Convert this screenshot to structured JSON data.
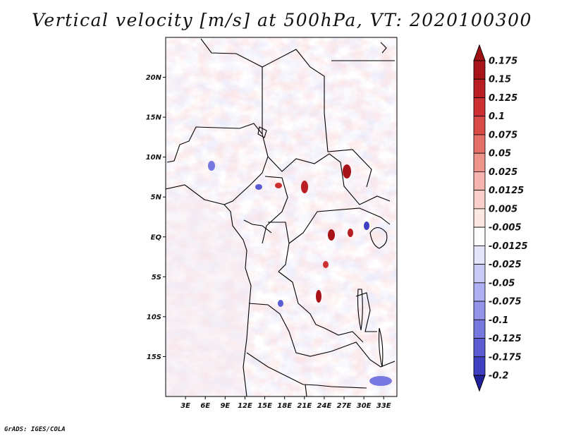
{
  "title": "Vertical velocity [m/s] at 500hPa, VT: 2020100300",
  "credit": "GrADS: IGES/COLA",
  "map": {
    "lon_range": [
      0,
      35
    ],
    "lat_range": [
      -20,
      25
    ],
    "lon_ticks": [
      {
        "value": 3,
        "label": "3E"
      },
      {
        "value": 6,
        "label": "6E"
      },
      {
        "value": 9,
        "label": "9E"
      },
      {
        "value": 12,
        "label": "12E"
      },
      {
        "value": 15,
        "label": "15E"
      },
      {
        "value": 18,
        "label": "18E"
      },
      {
        "value": 21,
        "label": "21E"
      },
      {
        "value": 24,
        "label": "24E"
      },
      {
        "value": 27,
        "label": "27E"
      },
      {
        "value": 30,
        "label": "30E"
      },
      {
        "value": 33,
        "label": "33E"
      }
    ],
    "lat_ticks": [
      {
        "value": 20,
        "label": "20N"
      },
      {
        "value": 15,
        "label": "15N"
      },
      {
        "value": 10,
        "label": "10N"
      },
      {
        "value": 5,
        "label": "5N"
      },
      {
        "value": 0,
        "label": "EQ"
      },
      {
        "value": -5,
        "label": "5S"
      },
      {
        "value": -10,
        "label": "10S"
      },
      {
        "value": -15,
        "label": "15S"
      }
    ]
  },
  "colorbar": {
    "levels": [
      {
        "label": "0.175",
        "color": "#a71319"
      },
      {
        "label": "0.15",
        "color": "#b91f22"
      },
      {
        "label": "0.125",
        "color": "#cc3032"
      },
      {
        "label": "0.1",
        "color": "#da4b47"
      },
      {
        "label": "0.075",
        "color": "#e5706a"
      },
      {
        "label": "0.05",
        "color": "#ee938c"
      },
      {
        "label": "0.025",
        "color": "#f5b4ad"
      },
      {
        "label": "0.0125",
        "color": "#f9d0ca"
      },
      {
        "label": "0.005",
        "color": "#fce6e2"
      },
      {
        "label": "-0.005",
        "color": "#ffffff"
      },
      {
        "label": "-0.0125",
        "color": "#e4e4fb"
      },
      {
        "label": "-0.025",
        "color": "#c9c9f6"
      },
      {
        "label": "-0.05",
        "color": "#aeaef2"
      },
      {
        "label": "-0.075",
        "color": "#9393ea"
      },
      {
        "label": "-0.1",
        "color": "#7777e0"
      },
      {
        "label": "-0.125",
        "color": "#5b5bd3"
      },
      {
        "label": "-0.175",
        "color": "#3f3fc2"
      },
      {
        "label": "-0.2",
        "color": "#2a2aa8"
      }
    ],
    "top_color": "#a01015",
    "bottom_color": "#20209a"
  }
}
